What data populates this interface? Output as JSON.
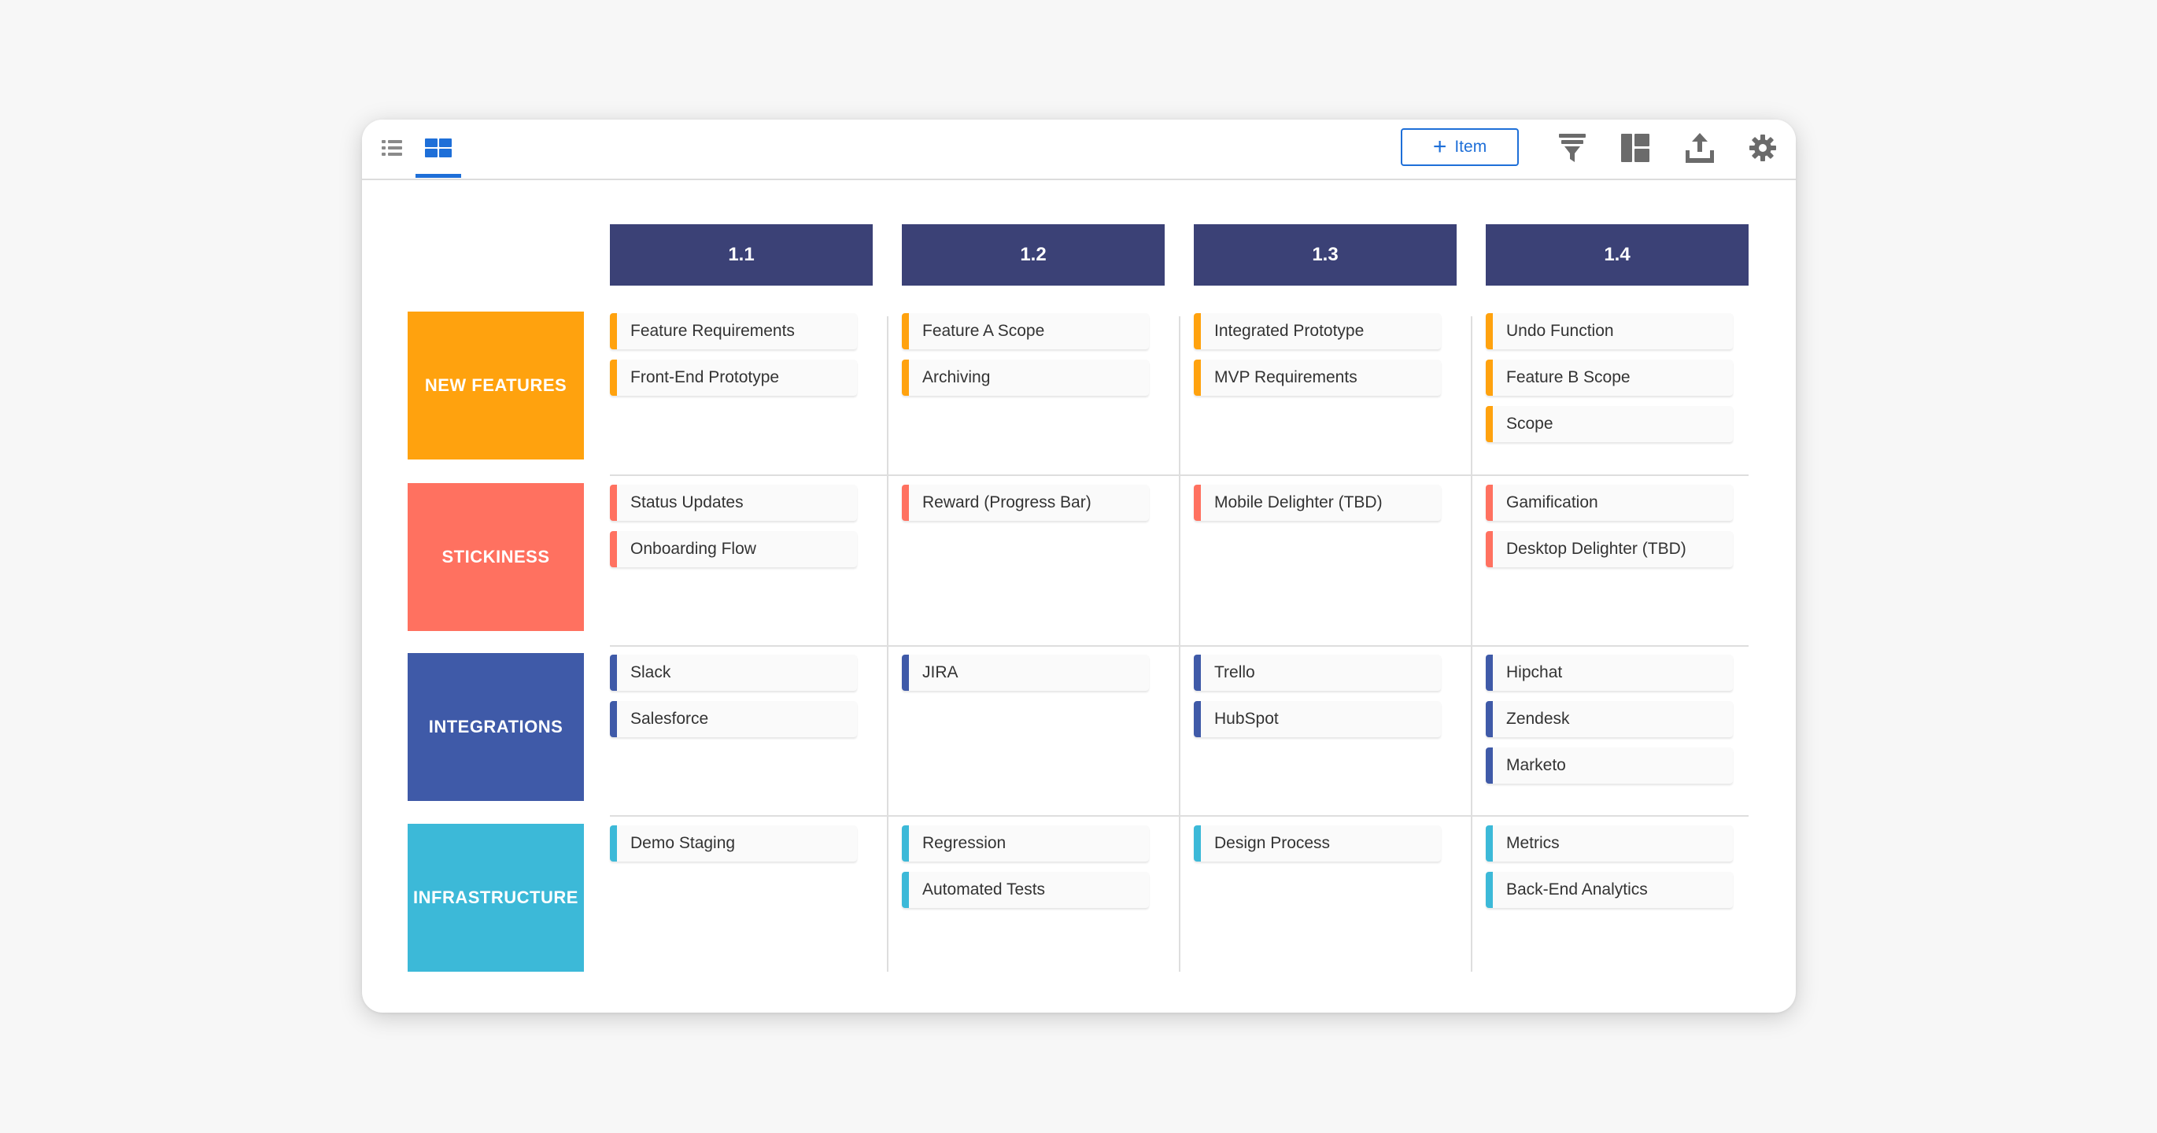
{
  "colors": {
    "accent": "#1e6fd8",
    "header": "#3b4176",
    "new_features": "#ffa20e",
    "stickiness": "#ff7160",
    "integrations": "#3f5aa8",
    "infrastructure": "#3cb9d8",
    "icon_gray": "#6b6b6b"
  },
  "toolbar": {
    "list_view_icon": "list-view-icon",
    "board_view_icon": "board-view-icon",
    "add_item_label": "Item",
    "filter_icon": "filter-icon",
    "layout_icon": "layout-icon",
    "export_icon": "export-icon",
    "settings_icon": "gear-icon"
  },
  "columns": [
    "1.1",
    "1.2",
    "1.3",
    "1.4"
  ],
  "rows": [
    {
      "label": "NEW FEATURES",
      "color": "#ffa20e",
      "cells": [
        [
          "Feature Requirements",
          "Front-End Prototype"
        ],
        [
          "Feature A Scope",
          "Archiving"
        ],
        [
          "Integrated Prototype",
          "MVP Requirements"
        ],
        [
          "Undo Function",
          "Feature B Scope",
          "Scope"
        ]
      ]
    },
    {
      "label": "STICKINESS",
      "color": "#ff7160",
      "cells": [
        [
          "Status Updates",
          "Onboarding Flow"
        ],
        [
          "Reward (Progress Bar)"
        ],
        [
          "Mobile Delighter (TBD)"
        ],
        [
          "Gamification",
          "Desktop Delighter (TBD)"
        ]
      ]
    },
    {
      "label": "INTEGRATIONS",
      "color": "#3f5aa8",
      "cells": [
        [
          "Slack",
          "Salesforce"
        ],
        [
          "JIRA"
        ],
        [
          "Trello",
          "HubSpot"
        ],
        [
          "Hipchat",
          "Zendesk",
          "Marketo"
        ]
      ]
    },
    {
      "label": "INFRASTRUCTURE",
      "color": "#3cb9d8",
      "cells": [
        [
          "Demo Staging"
        ],
        [
          "Regression",
          "Automated Tests"
        ],
        [
          "Design Process"
        ],
        [
          "Metrics",
          "Back-End Analytics"
        ]
      ]
    }
  ]
}
